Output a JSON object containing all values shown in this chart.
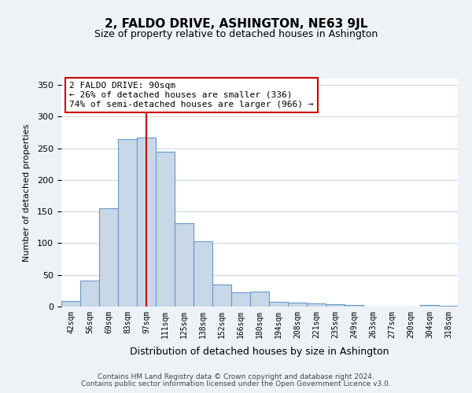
{
  "title": "2, FALDO DRIVE, ASHINGTON, NE63 9JL",
  "subtitle": "Size of property relative to detached houses in Ashington",
  "xlabel": "Distribution of detached houses by size in Ashington",
  "ylabel": "Number of detached properties",
  "categories": [
    "42sqm",
    "56sqm",
    "69sqm",
    "83sqm",
    "97sqm",
    "111sqm",
    "125sqm",
    "138sqm",
    "152sqm",
    "166sqm",
    "180sqm",
    "194sqm",
    "208sqm",
    "221sqm",
    "235sqm",
    "249sqm",
    "263sqm",
    "277sqm",
    "290sqm",
    "304sqm",
    "318sqm"
  ],
  "values": [
    9,
    41,
    155,
    265,
    267,
    245,
    131,
    103,
    35,
    22,
    23,
    7,
    6,
    5,
    4,
    3,
    0,
    0,
    0,
    2,
    1
  ],
  "bar_color": "#c8d8e8",
  "bar_edge_color": "#6699cc",
  "vline_pos": 4.0,
  "vline_color": "#cc0000",
  "annotation_box_text": "2 FALDO DRIVE: 90sqm\n← 26% of detached houses are smaller (336)\n74% of semi-detached houses are larger (966) →",
  "ylim": [
    0,
    360
  ],
  "yticks": [
    0,
    50,
    100,
    150,
    200,
    250,
    300,
    350
  ],
  "footer_line1": "Contains HM Land Registry data © Crown copyright and database right 2024.",
  "footer_line2": "Contains public sector information licensed under the Open Government Licence v3.0.",
  "background_color": "#eef2f7",
  "plot_background_color": "#ffffff",
  "grid_color": "#d0d8e4"
}
